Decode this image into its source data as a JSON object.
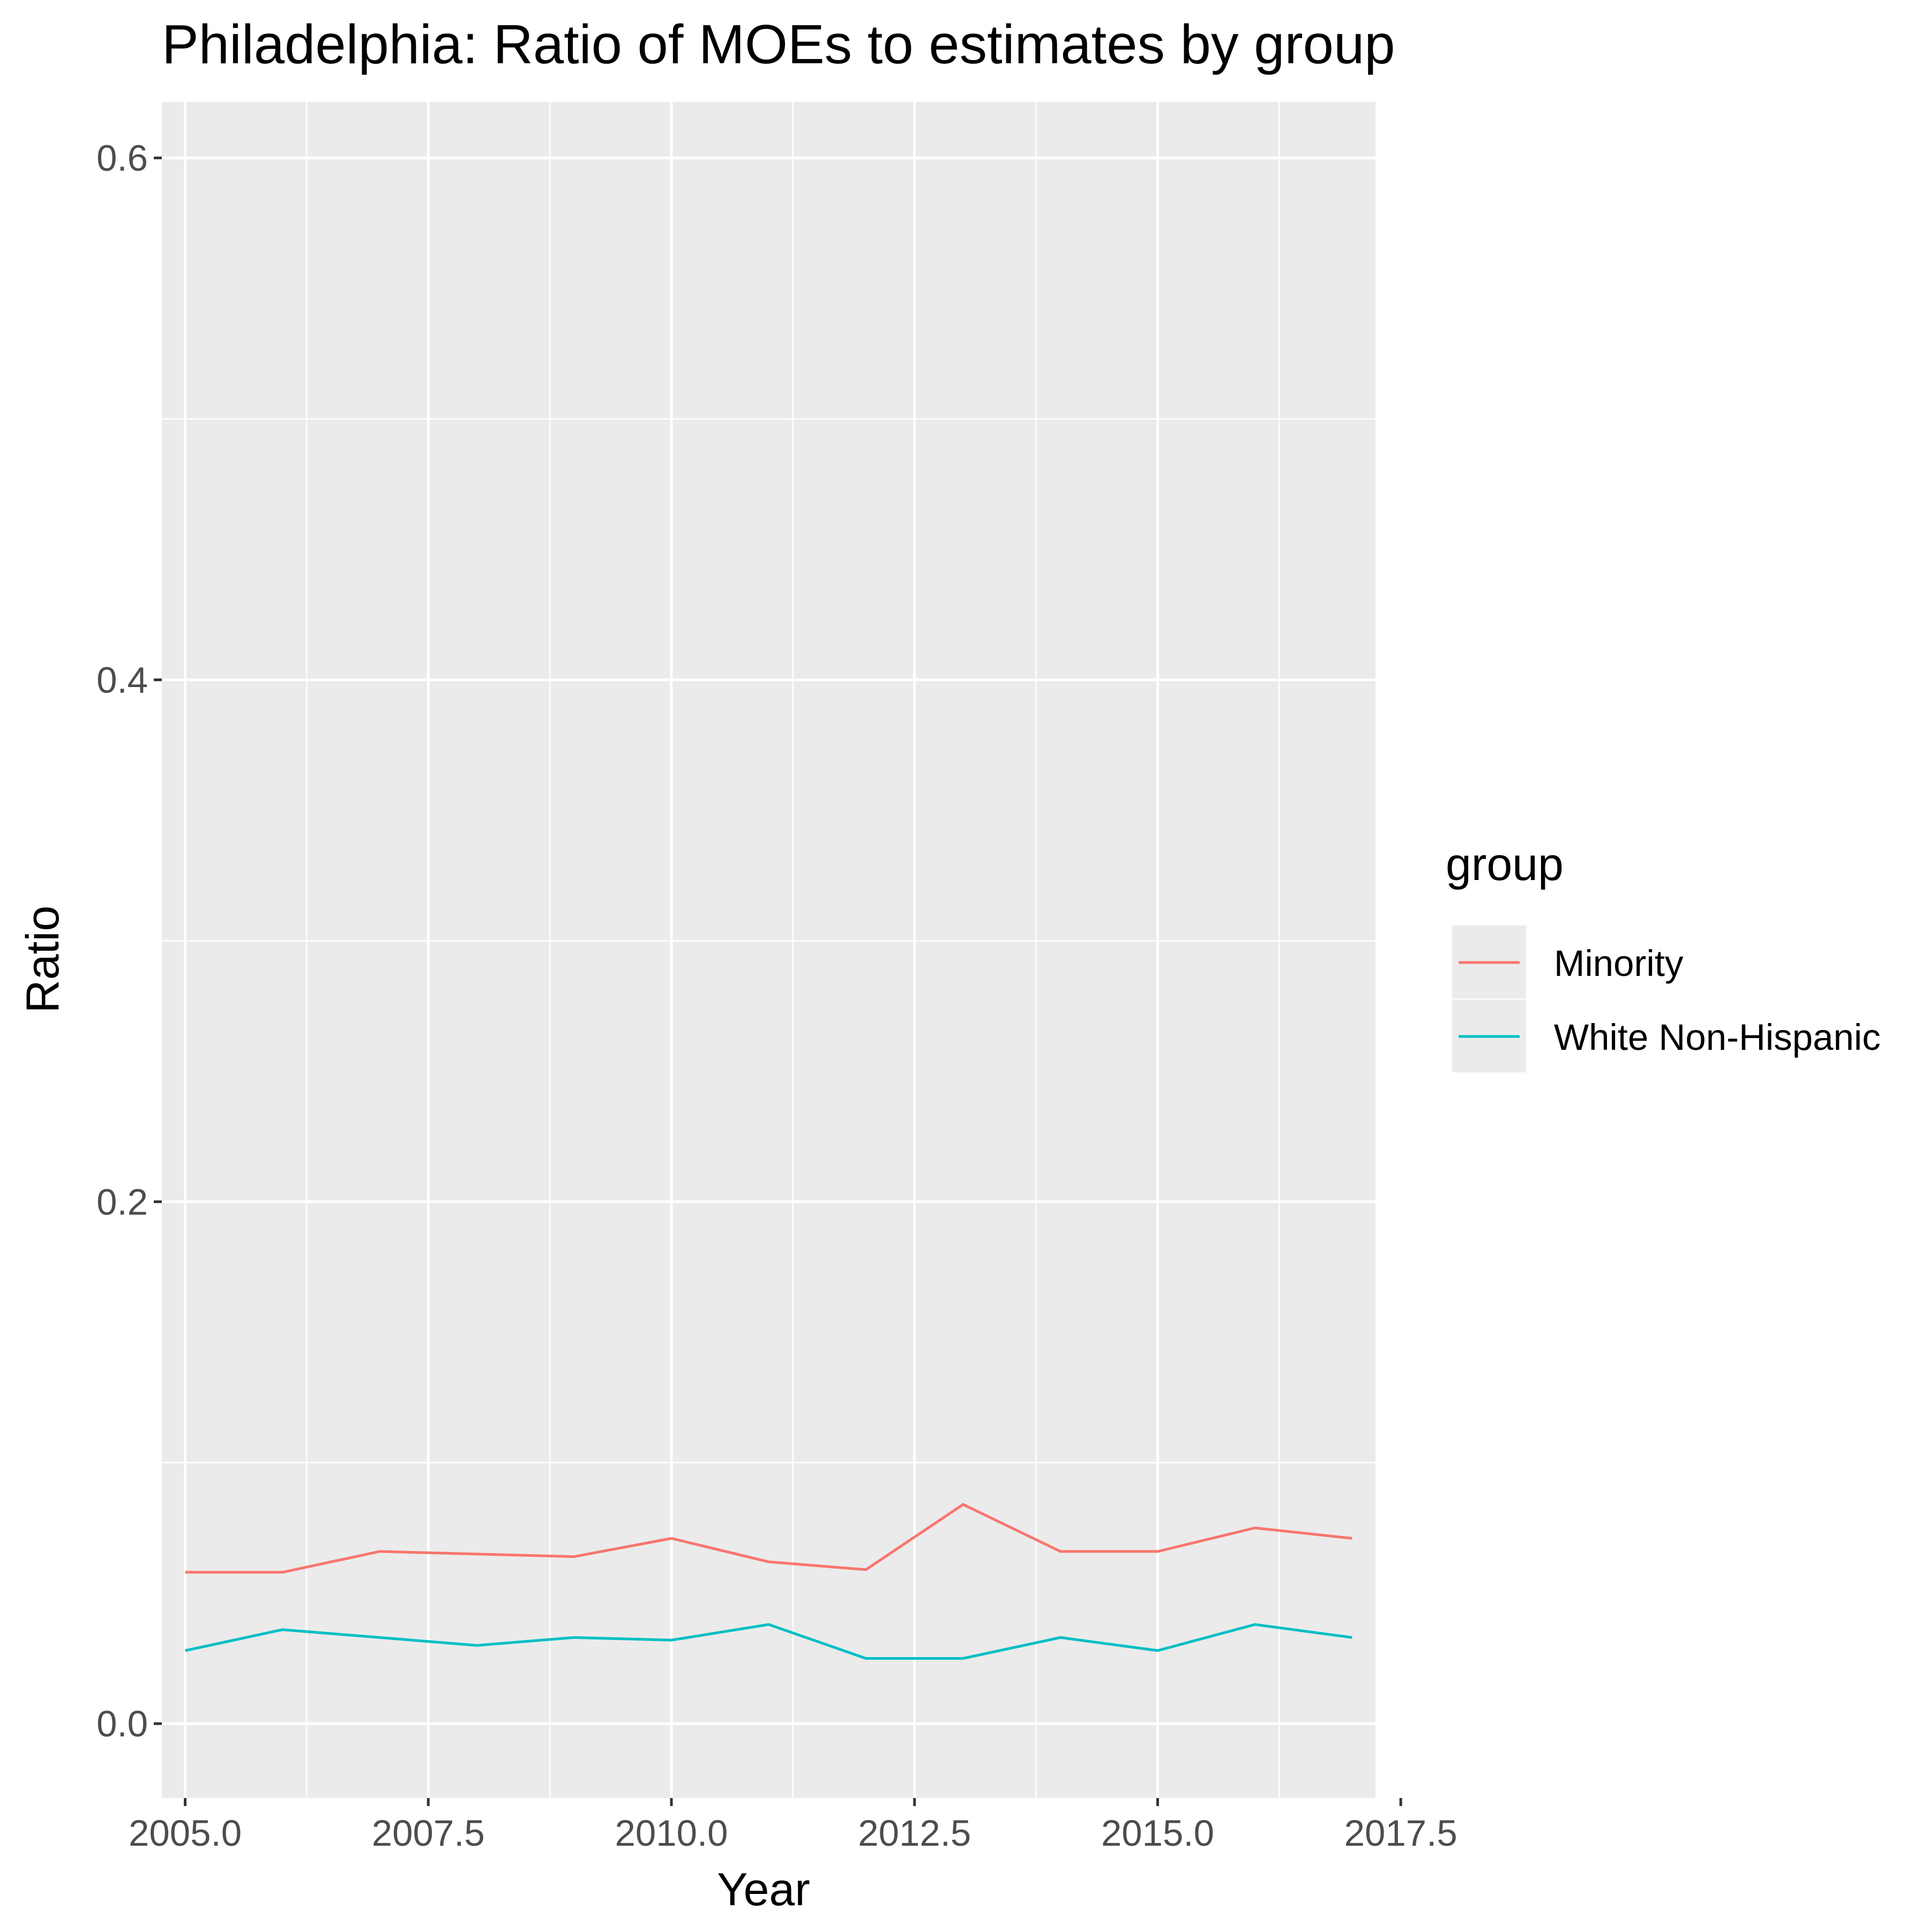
{
  "chart_data": {
    "type": "line",
    "title": "Philadelphia: Ratio of MOEs to estimates by group",
    "xlabel": "Year",
    "ylabel": "Ratio",
    "xlim": [
      2004.76,
      2017.24
    ],
    "ylim": [
      -0.0285,
      0.6215
    ],
    "x_ticks": [
      2005.0,
      2007.5,
      2010.0,
      2012.5,
      2015.0,
      2017.5
    ],
    "x_tick_labels": [
      "2005.0",
      "2007.5",
      "2010.0",
      "2012.5",
      "2015.0",
      "2017.5"
    ],
    "y_ticks": [
      0.0,
      0.2,
      0.4,
      0.6
    ],
    "y_tick_labels": [
      "0.0",
      "0.2",
      "0.4",
      "0.6"
    ],
    "grid": true,
    "legend": {
      "title": "group",
      "placement": "right"
    },
    "x": [
      2005,
      2006,
      2007,
      2008,
      2009,
      2010,
      2011,
      2012,
      2013,
      2014,
      2015,
      2016,
      2017
    ],
    "series": [
      {
        "name": "Minority",
        "color": "#F8766D",
        "values": [
          0.058,
          0.058,
          0.066,
          0.065,
          0.064,
          0.071,
          0.062,
          0.059,
          0.084,
          0.066,
          0.066,
          0.075,
          0.071
        ]
      },
      {
        "name": "White Non-Hispanic",
        "color": "#00BFC4",
        "values": [
          0.028,
          0.036,
          0.033,
          0.03,
          0.033,
          0.032,
          0.038,
          0.025,
          0.025,
          0.033,
          0.028,
          0.038,
          0.033
        ]
      }
    ]
  }
}
